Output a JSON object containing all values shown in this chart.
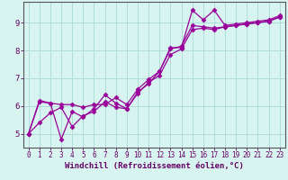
{
  "title": "",
  "xlabel": "Windchill (Refroidissement éolien,°C)",
  "ylabel": "",
  "bg_color": "#d8f4f0",
  "line_color": "#990099",
  "grid_color": "#b0ddd8",
  "axis_color": "#660066",
  "spine_color": "#555555",
  "xlim": [
    -0.5,
    23.5
  ],
  "ylim": [
    4.5,
    9.75
  ],
  "xticks": [
    0,
    1,
    2,
    3,
    4,
    5,
    6,
    7,
    8,
    9,
    10,
    11,
    12,
    13,
    14,
    15,
    16,
    17,
    18,
    19,
    20,
    21,
    22,
    23
  ],
  "yticks": [
    5,
    6,
    7,
    8,
    9
  ],
  "line1_x": [
    0,
    1,
    2,
    3,
    4,
    5,
    6,
    7,
    8,
    9,
    10,
    11,
    12,
    13,
    14,
    15,
    16,
    17,
    18,
    19,
    20,
    21,
    22,
    23
  ],
  "line1_y": [
    5.0,
    6.2,
    6.1,
    4.8,
    5.8,
    5.6,
    5.9,
    6.4,
    6.1,
    5.9,
    6.5,
    6.8,
    7.25,
    8.1,
    8.1,
    9.45,
    9.1,
    9.45,
    8.9,
    8.95,
    9.0,
    9.05,
    9.1,
    9.25
  ],
  "line2_x": [
    0,
    1,
    2,
    3,
    4,
    5,
    6,
    7,
    8,
    9,
    10,
    11,
    12,
    13,
    14,
    15,
    16,
    17,
    18,
    19,
    20,
    21,
    22,
    23
  ],
  "line2_y": [
    5.0,
    6.15,
    6.1,
    6.05,
    6.05,
    5.95,
    6.05,
    6.05,
    6.3,
    6.05,
    6.6,
    6.95,
    7.25,
    8.05,
    8.15,
    8.9,
    8.85,
    8.8,
    8.85,
    8.9,
    8.95,
    9.0,
    9.05,
    9.2
  ],
  "line3_x": [
    0,
    1,
    2,
    3,
    4,
    5,
    6,
    7,
    8,
    9,
    10,
    11,
    12,
    13,
    14,
    15,
    16,
    17,
    18,
    19,
    20,
    21,
    22,
    23
  ],
  "line3_y": [
    5.0,
    5.4,
    5.75,
    5.95,
    5.25,
    5.65,
    5.8,
    6.15,
    5.95,
    5.9,
    6.45,
    6.85,
    7.1,
    7.85,
    8.05,
    8.75,
    8.8,
    8.75,
    8.85,
    8.9,
    8.95,
    9.0,
    9.05,
    9.2
  ],
  "marker": "D",
  "markersize": 2.5,
  "linewidth": 0.9,
  "tick_fontsize": 5.5,
  "xlabel_fontsize": 6.5
}
